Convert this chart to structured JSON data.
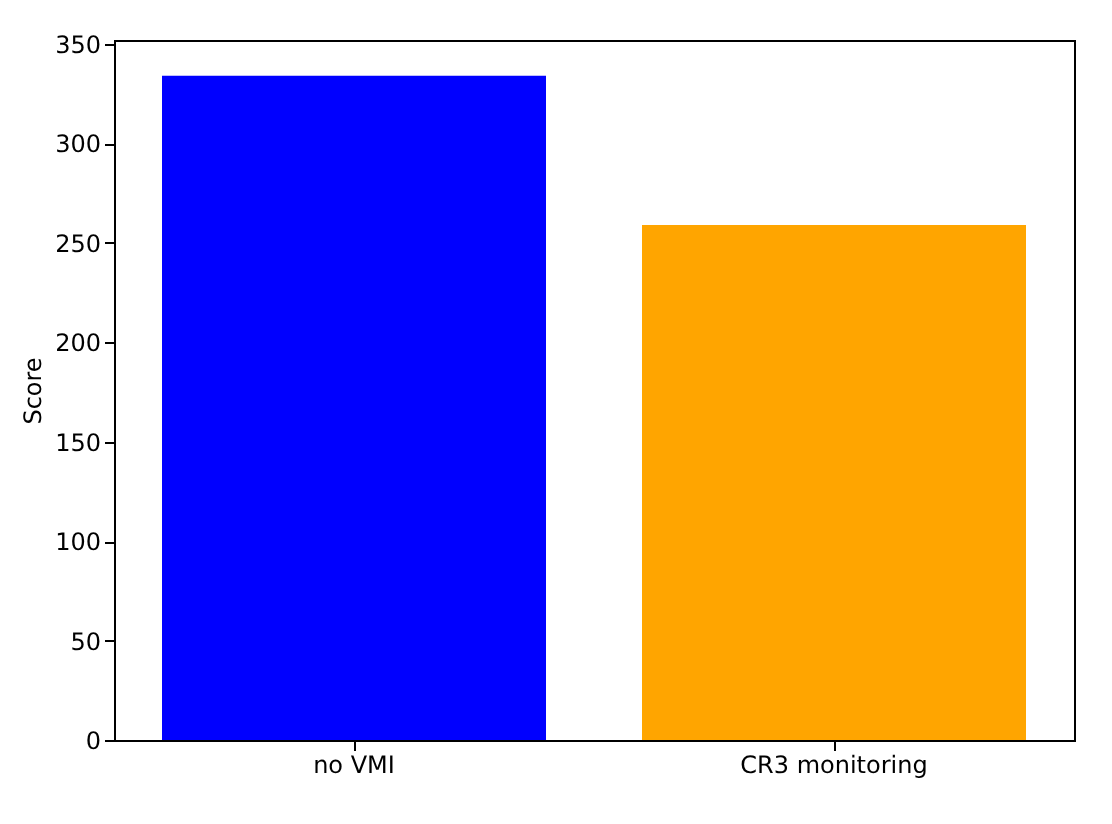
{
  "chart_data": {
    "type": "bar",
    "ylabel": "Score",
    "categories": [
      "no VMI",
      "CR3 monitoring"
    ],
    "values": [
      334,
      259
    ],
    "colors": [
      "#0000ff",
      "#ffa500"
    ],
    "ylim": [
      0,
      352
    ],
    "yticks": [
      0,
      50,
      100,
      150,
      200,
      250,
      300,
      350
    ],
    "grid": false,
    "legend": false
  }
}
